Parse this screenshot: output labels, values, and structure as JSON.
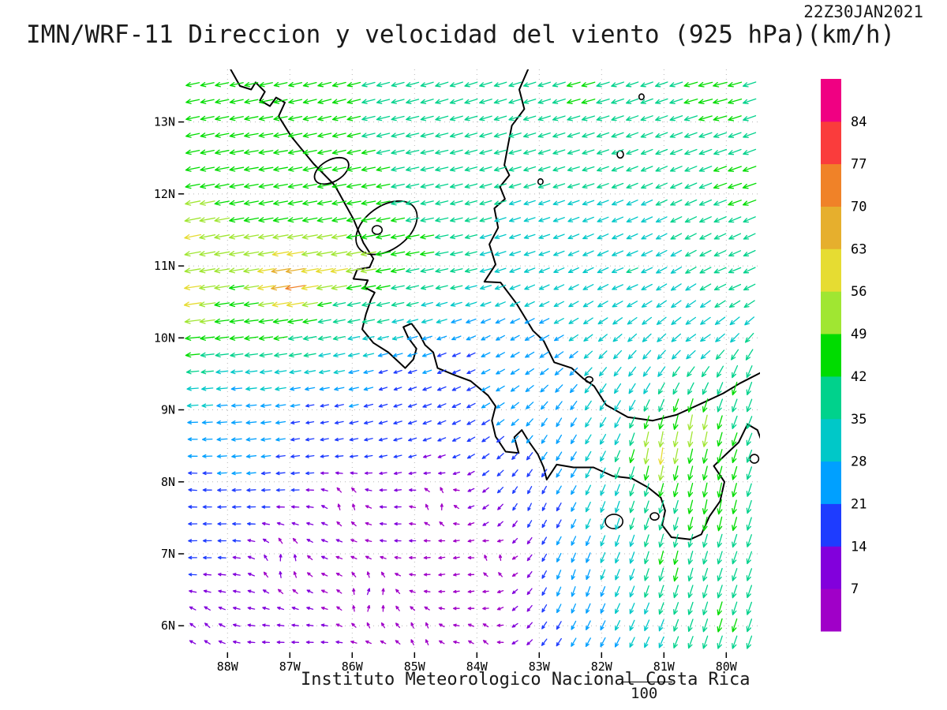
{
  "title": "IMN/WRF-11 Direccion y velocidad del viento (925 hPa)(km/h)",
  "timestamp": "22Z30JAN2021",
  "footer": {
    "institute": "Instituto Meteorologico Nacional Costa Rica",
    "scale_label": "100"
  },
  "chart_data": {
    "type": "vector_field",
    "model": "IMN/WRF-11",
    "pressure_level": "925 hPa",
    "units": "km/h",
    "valid_time": "22Z30JAN2021",
    "lon_range": [
      -88.7,
      -79.46
    ],
    "lat_range": [
      5.63,
      13.73
    ],
    "x_ticks": {
      "labels": [
        "88W",
        "87W",
        "86W",
        "85W",
        "84W",
        "83W",
        "82W",
        "81W",
        "80W"
      ],
      "values": [
        -88,
        -87,
        -86,
        -85,
        -84,
        -83,
        -82,
        -81,
        -80
      ]
    },
    "y_ticks": {
      "labels": [
        "13N",
        "12N",
        "11N",
        "10N",
        "9N",
        "8N",
        "7N",
        "6N"
      ],
      "values": [
        13,
        12,
        11,
        10,
        9,
        8,
        7,
        6
      ]
    },
    "grid_spacing_deg": 0.235,
    "colorbar": {
      "thresholds": [
        7,
        14,
        21,
        28,
        35,
        42,
        49,
        56,
        63,
        70,
        77,
        84
      ],
      "colors": [
        "#A000C8",
        "#8200DC",
        "#1E3CFF",
        "#00A0FF",
        "#00C8C8",
        "#00D28C",
        "#00DC00",
        "#A0E632",
        "#E6DC32",
        "#E6AF2D",
        "#F08228",
        "#FA3C3C",
        "#F00082"
      ]
    },
    "wind_samples": [
      {
        "lon": -88.3,
        "lat": 13.4,
        "u": -42,
        "v": -9
      },
      {
        "lon": -86.3,
        "lat": 13.4,
        "u": -42,
        "v": -11
      },
      {
        "lon": -84.3,
        "lat": 13.4,
        "u": -40,
        "v": -13
      },
      {
        "lon": -82.3,
        "lat": 13.4,
        "u": -43,
        "v": -12
      },
      {
        "lon": -80.2,
        "lat": 13.4,
        "u": -46,
        "v": -11
      },
      {
        "lon": -79.8,
        "lat": 12.1,
        "u": -44,
        "v": -14
      },
      {
        "lon": -82.4,
        "lat": 12.3,
        "u": -35,
        "v": -10
      },
      {
        "lon": -84.8,
        "lat": 12.5,
        "u": -40,
        "v": -8
      },
      {
        "lon": -87.4,
        "lat": 12.6,
        "u": -46,
        "v": -7
      },
      {
        "lon": -85.9,
        "lat": 12.0,
        "u": -46,
        "v": -8
      },
      {
        "lon": -83.5,
        "lat": 12.6,
        "u": -37,
        "v": -10
      },
      {
        "lon": -88.6,
        "lat": 11.4,
        "u": -58,
        "v": -12
      },
      {
        "lon": -88.6,
        "lat": 10.5,
        "u": -66,
        "v": -9
      },
      {
        "lon": -87.0,
        "lat": 10.75,
        "u": -83,
        "v": -13
      },
      {
        "lon": -86.3,
        "lat": 10.9,
        "u": -66,
        "v": -11
      },
      {
        "lon": -85.7,
        "lat": 11.0,
        "u": -54,
        "v": -9
      },
      {
        "lon": -84.8,
        "lat": 11.25,
        "u": -45,
        "v": -7
      },
      {
        "lon": -88.65,
        "lat": 9.9,
        "u": -50,
        "v": -4
      },
      {
        "lon": -87.6,
        "lat": 10.15,
        "u": -44,
        "v": -5
      },
      {
        "lon": -86.2,
        "lat": 10.35,
        "u": -30,
        "v": -7
      },
      {
        "lon": -88.65,
        "lat": 9.3,
        "u": -30,
        "v": -2
      },
      {
        "lon": -87.9,
        "lat": 9.1,
        "u": -23,
        "v": -1
      },
      {
        "lon": -88.65,
        "lat": 7.9,
        "u": -15,
        "v": 2
      },
      {
        "lon": -86.6,
        "lat": 8.9,
        "u": -11,
        "v": -2
      },
      {
        "lon": -85.3,
        "lat": 9.35,
        "u": -11,
        "v": -4
      },
      {
        "lon": -84.3,
        "lat": 9.65,
        "u": -13,
        "v": -6
      },
      {
        "lon": -87.1,
        "lat": 6.9,
        "u": 3,
        "v": 10
      },
      {
        "lon": -85.7,
        "lat": 6.4,
        "u": 5,
        "v": 9
      },
      {
        "lon": -88.4,
        "lat": 6.0,
        "u": -5,
        "v": 6
      },
      {
        "lon": -84.6,
        "lat": 7.7,
        "u": 3,
        "v": 9
      },
      {
        "lon": -83.7,
        "lat": 6.9,
        "u": 2,
        "v": 8
      },
      {
        "lon": -86.1,
        "lat": 7.7,
        "u": 2,
        "v": 8
      },
      {
        "lon": -88.65,
        "lat": 8.6,
        "u": -20,
        "v": 1
      },
      {
        "lon": -83.1,
        "lat": 11.4,
        "u": -30,
        "v": -9
      },
      {
        "lon": -81.6,
        "lat": 10.9,
        "u": -34,
        "v": -12
      },
      {
        "lon": -79.9,
        "lat": 10.9,
        "u": -38,
        "v": -14
      },
      {
        "lon": -82.9,
        "lat": 10.3,
        "u": -25,
        "v": -12
      },
      {
        "lon": -80.4,
        "lat": 10.0,
        "u": -30,
        "v": -18
      },
      {
        "lon": -79.8,
        "lat": 9.3,
        "u": -12,
        "v": -42
      },
      {
        "lon": -80.5,
        "lat": 8.7,
        "u": -8,
        "v": -56
      },
      {
        "lon": -81.1,
        "lat": 8.4,
        "u": -7,
        "v": -64
      },
      {
        "lon": -80.2,
        "lat": 7.7,
        "u": -8,
        "v": -50
      },
      {
        "lon": -80.9,
        "lat": 6.9,
        "u": -10,
        "v": -45
      },
      {
        "lon": -80.1,
        "lat": 6.1,
        "u": -12,
        "v": -43
      },
      {
        "lon": -81.7,
        "lat": 7.5,
        "u": -10,
        "v": -34
      },
      {
        "lon": -82.4,
        "lat": 6.6,
        "u": -8,
        "v": -27
      },
      {
        "lon": -83.1,
        "lat": 7.7,
        "u": -5,
        "v": -14
      },
      {
        "lon": -82.7,
        "lat": 8.7,
        "u": -11,
        "v": -22
      },
      {
        "lon": -81.9,
        "lat": 9.1,
        "u": -16,
        "v": -27
      },
      {
        "lon": -79.7,
        "lat": 5.8,
        "u": -14,
        "v": -40
      },
      {
        "lon": -84.2,
        "lat": 10.85,
        "u": -36,
        "v": -7
      },
      {
        "lon": -83.6,
        "lat": 9.95,
        "u": -19,
        "v": -11
      },
      {
        "lon": -84.9,
        "lat": 5.9,
        "u": 0,
        "v": 6
      },
      {
        "lon": -83.9,
        "lat": 5.85,
        "u": -3,
        "v": 5
      }
    ],
    "coastlines": [
      [
        [
          -87.95,
          13.73
        ],
        [
          -87.8,
          13.5
        ],
        [
          -87.62,
          13.45
        ],
        [
          -87.55,
          13.55
        ],
        [
          -87.4,
          13.42
        ],
        [
          -87.48,
          13.3
        ],
        [
          -87.32,
          13.22
        ],
        [
          -87.22,
          13.34
        ],
        [
          -87.08,
          13.27
        ],
        [
          -87.18,
          13.08
        ],
        [
          -86.98,
          12.8
        ],
        [
          -86.62,
          12.42
        ],
        [
          -86.28,
          12.12
        ],
        [
          -85.98,
          11.65
        ],
        [
          -85.82,
          11.32
        ],
        [
          -85.66,
          11.1
        ],
        [
          -85.72,
          10.98
        ],
        [
          -85.92,
          10.95
        ],
        [
          -85.98,
          10.82
        ],
        [
          -85.75,
          10.8
        ],
        [
          -85.8,
          10.7
        ],
        [
          -85.64,
          10.63
        ],
        [
          -85.7,
          10.53
        ],
        [
          -85.78,
          10.33
        ],
        [
          -85.84,
          10.12
        ],
        [
          -85.66,
          9.93
        ],
        [
          -85.42,
          9.8
        ],
        [
          -85.15,
          9.58
        ],
        [
          -85.02,
          9.7
        ],
        [
          -84.97,
          9.85
        ],
        [
          -85.1,
          10.0
        ],
        [
          -85.18,
          10.15
        ],
        [
          -85.05,
          10.2
        ],
        [
          -84.92,
          10.05
        ],
        [
          -84.83,
          9.9
        ],
        [
          -84.7,
          9.8
        ],
        [
          -84.63,
          9.58
        ],
        [
          -84.35,
          9.48
        ],
        [
          -84.1,
          9.4
        ],
        [
          -83.82,
          9.2
        ],
        [
          -83.7,
          9.05
        ],
        [
          -83.76,
          8.85
        ],
        [
          -83.7,
          8.63
        ],
        [
          -83.54,
          8.42
        ],
        [
          -83.33,
          8.4
        ],
        [
          -83.4,
          8.62
        ],
        [
          -83.28,
          8.72
        ],
        [
          -83.16,
          8.55
        ],
        [
          -83.02,
          8.38
        ],
        [
          -82.93,
          8.2
        ],
        [
          -82.88,
          8.03
        ],
        [
          -82.72,
          8.24
        ],
        [
          -82.45,
          8.2
        ],
        [
          -82.13,
          8.2
        ],
        [
          -81.82,
          8.08
        ],
        [
          -81.52,
          8.05
        ],
        [
          -81.25,
          7.92
        ],
        [
          -81.05,
          7.78
        ],
        [
          -80.98,
          7.6
        ],
        [
          -81.03,
          7.4
        ],
        [
          -80.88,
          7.23
        ],
        [
          -80.58,
          7.2
        ],
        [
          -80.4,
          7.27
        ],
        [
          -80.27,
          7.52
        ],
        [
          -80.1,
          7.73
        ],
        [
          -80.03,
          8.0
        ],
        [
          -80.2,
          8.22
        ],
        [
          -80.02,
          8.37
        ],
        [
          -79.8,
          8.55
        ],
        [
          -79.66,
          8.8
        ],
        [
          -79.5,
          8.72
        ],
        [
          -79.44,
          8.58
        ]
      ],
      [
        [
          -83.18,
          13.73
        ],
        [
          -83.32,
          13.45
        ],
        [
          -83.24,
          13.18
        ],
        [
          -83.44,
          12.95
        ],
        [
          -83.5,
          12.68
        ],
        [
          -83.56,
          12.4
        ],
        [
          -83.48,
          12.26
        ],
        [
          -83.63,
          12.1
        ],
        [
          -83.55,
          11.93
        ],
        [
          -83.72,
          11.8
        ],
        [
          -83.66,
          11.53
        ],
        [
          -83.8,
          11.3
        ],
        [
          -83.7,
          11.02
        ],
        [
          -83.88,
          10.78
        ],
        [
          -83.62,
          10.77
        ],
        [
          -83.36,
          10.47
        ],
        [
          -83.1,
          10.1
        ],
        [
          -82.93,
          9.96
        ],
        [
          -82.76,
          9.66
        ],
        [
          -82.48,
          9.58
        ],
        [
          -82.3,
          9.44
        ],
        [
          -82.12,
          9.33
        ],
        [
          -81.93,
          9.07
        ],
        [
          -81.58,
          8.9
        ],
        [
          -81.18,
          8.85
        ],
        [
          -80.8,
          8.93
        ],
        [
          -80.42,
          9.08
        ],
        [
          -80.05,
          9.23
        ],
        [
          -79.78,
          9.37
        ],
        [
          -79.44,
          9.52
        ]
      ]
    ],
    "lakes": [
      {
        "lon": -85.45,
        "lat": 11.53,
        "rx": 0.55,
        "ry": 0.3,
        "rot": -36
      },
      {
        "lon": -86.33,
        "lat": 12.32,
        "rx": 0.3,
        "ry": 0.15,
        "rot": -30
      }
    ],
    "islands": [
      {
        "lon": -85.6,
        "lat": 11.5,
        "r": 0.08,
        "ry": 0.06
      },
      {
        "lon": -81.7,
        "lat": 12.55,
        "r": 0.05,
        "ry": 0.05
      },
      {
        "lon": -81.36,
        "lat": 13.35,
        "r": 0.04,
        "ry": 0.04
      },
      {
        "lon": -82.98,
        "lat": 12.17,
        "r": 0.04,
        "ry": 0.04
      },
      {
        "lon": -81.8,
        "lat": 7.45,
        "r": 0.14,
        "ry": 0.1
      },
      {
        "lon": -81.15,
        "lat": 7.52,
        "r": 0.07,
        "ry": 0.05
      },
      {
        "lon": -82.2,
        "lat": 9.42,
        "r": 0.06,
        "ry": 0.04
      },
      {
        "lon": -79.55,
        "lat": 8.32,
        "r": 0.07,
        "ry": 0.06
      }
    ]
  }
}
